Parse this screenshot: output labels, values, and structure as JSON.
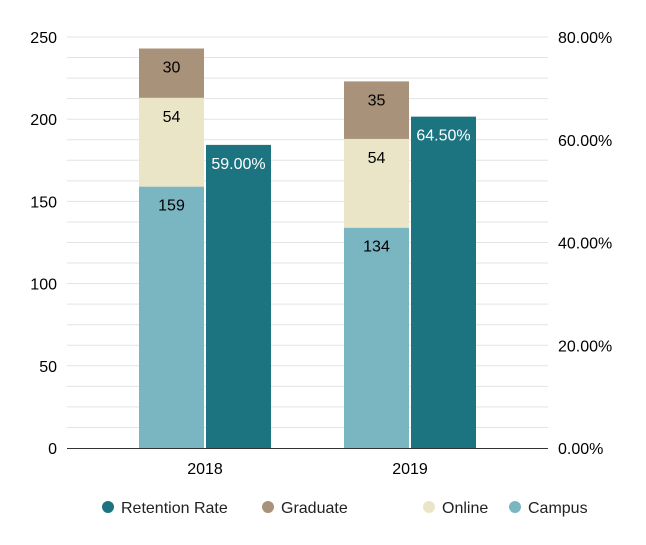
{
  "chart_data": {
    "type": "bar",
    "categories": [
      "2018",
      "2019"
    ],
    "series": [
      {
        "name": "Campus",
        "axis": "left",
        "stack": "enrollment",
        "color": "#7ab5c2",
        "label_color": "#000000",
        "values": [
          159,
          134
        ]
      },
      {
        "name": "Online",
        "axis": "left",
        "stack": "enrollment",
        "color": "#ebe5c8",
        "label_color": "#000000",
        "values": [
          54,
          54
        ]
      },
      {
        "name": "Graduate",
        "axis": "left",
        "stack": "enrollment",
        "color": "#a89279",
        "label_color": "#000000",
        "values": [
          30,
          35
        ]
      },
      {
        "name": "Retention Rate",
        "axis": "right",
        "stack": "retention",
        "color": "#1b7480",
        "label_color": "#ffffff",
        "values": [
          59.0,
          64.5
        ],
        "value_labels": [
          "59.00%",
          "64.50%"
        ]
      }
    ],
    "left_axis": {
      "min": 0,
      "max": 250,
      "ticks": [
        "0",
        "50",
        "100",
        "150",
        "200",
        "250"
      ]
    },
    "right_axis": {
      "min": 0,
      "max": 80,
      "ticks": [
        "0.00%",
        "20.00%",
        "40.00%",
        "60.00%",
        "80.00%"
      ]
    },
    "legend": {
      "position": "bottom",
      "order": [
        "Retention Rate",
        "Graduate",
        "Online",
        "Campus"
      ]
    },
    "grid": true
  }
}
